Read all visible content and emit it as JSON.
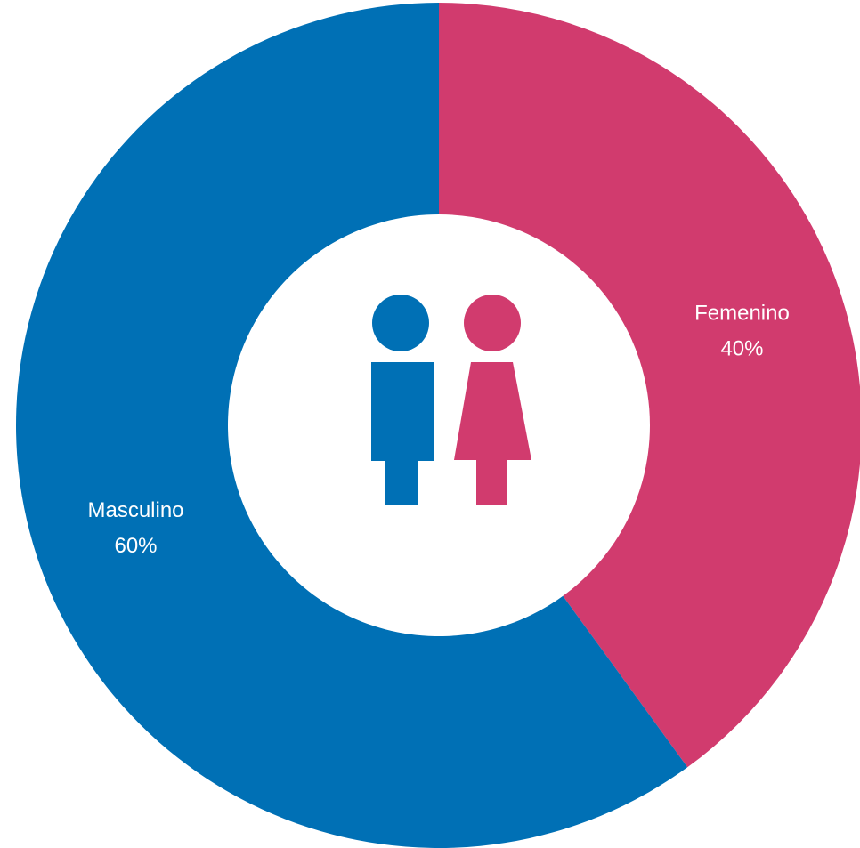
{
  "chart_data": {
    "type": "donut",
    "categories": [
      "Femenino",
      "Masculino"
    ],
    "values": [
      40,
      60
    ],
    "value_labels": [
      "40%",
      "60%"
    ],
    "colors": [
      "#d13b6e",
      "#0070b5"
    ]
  }
}
